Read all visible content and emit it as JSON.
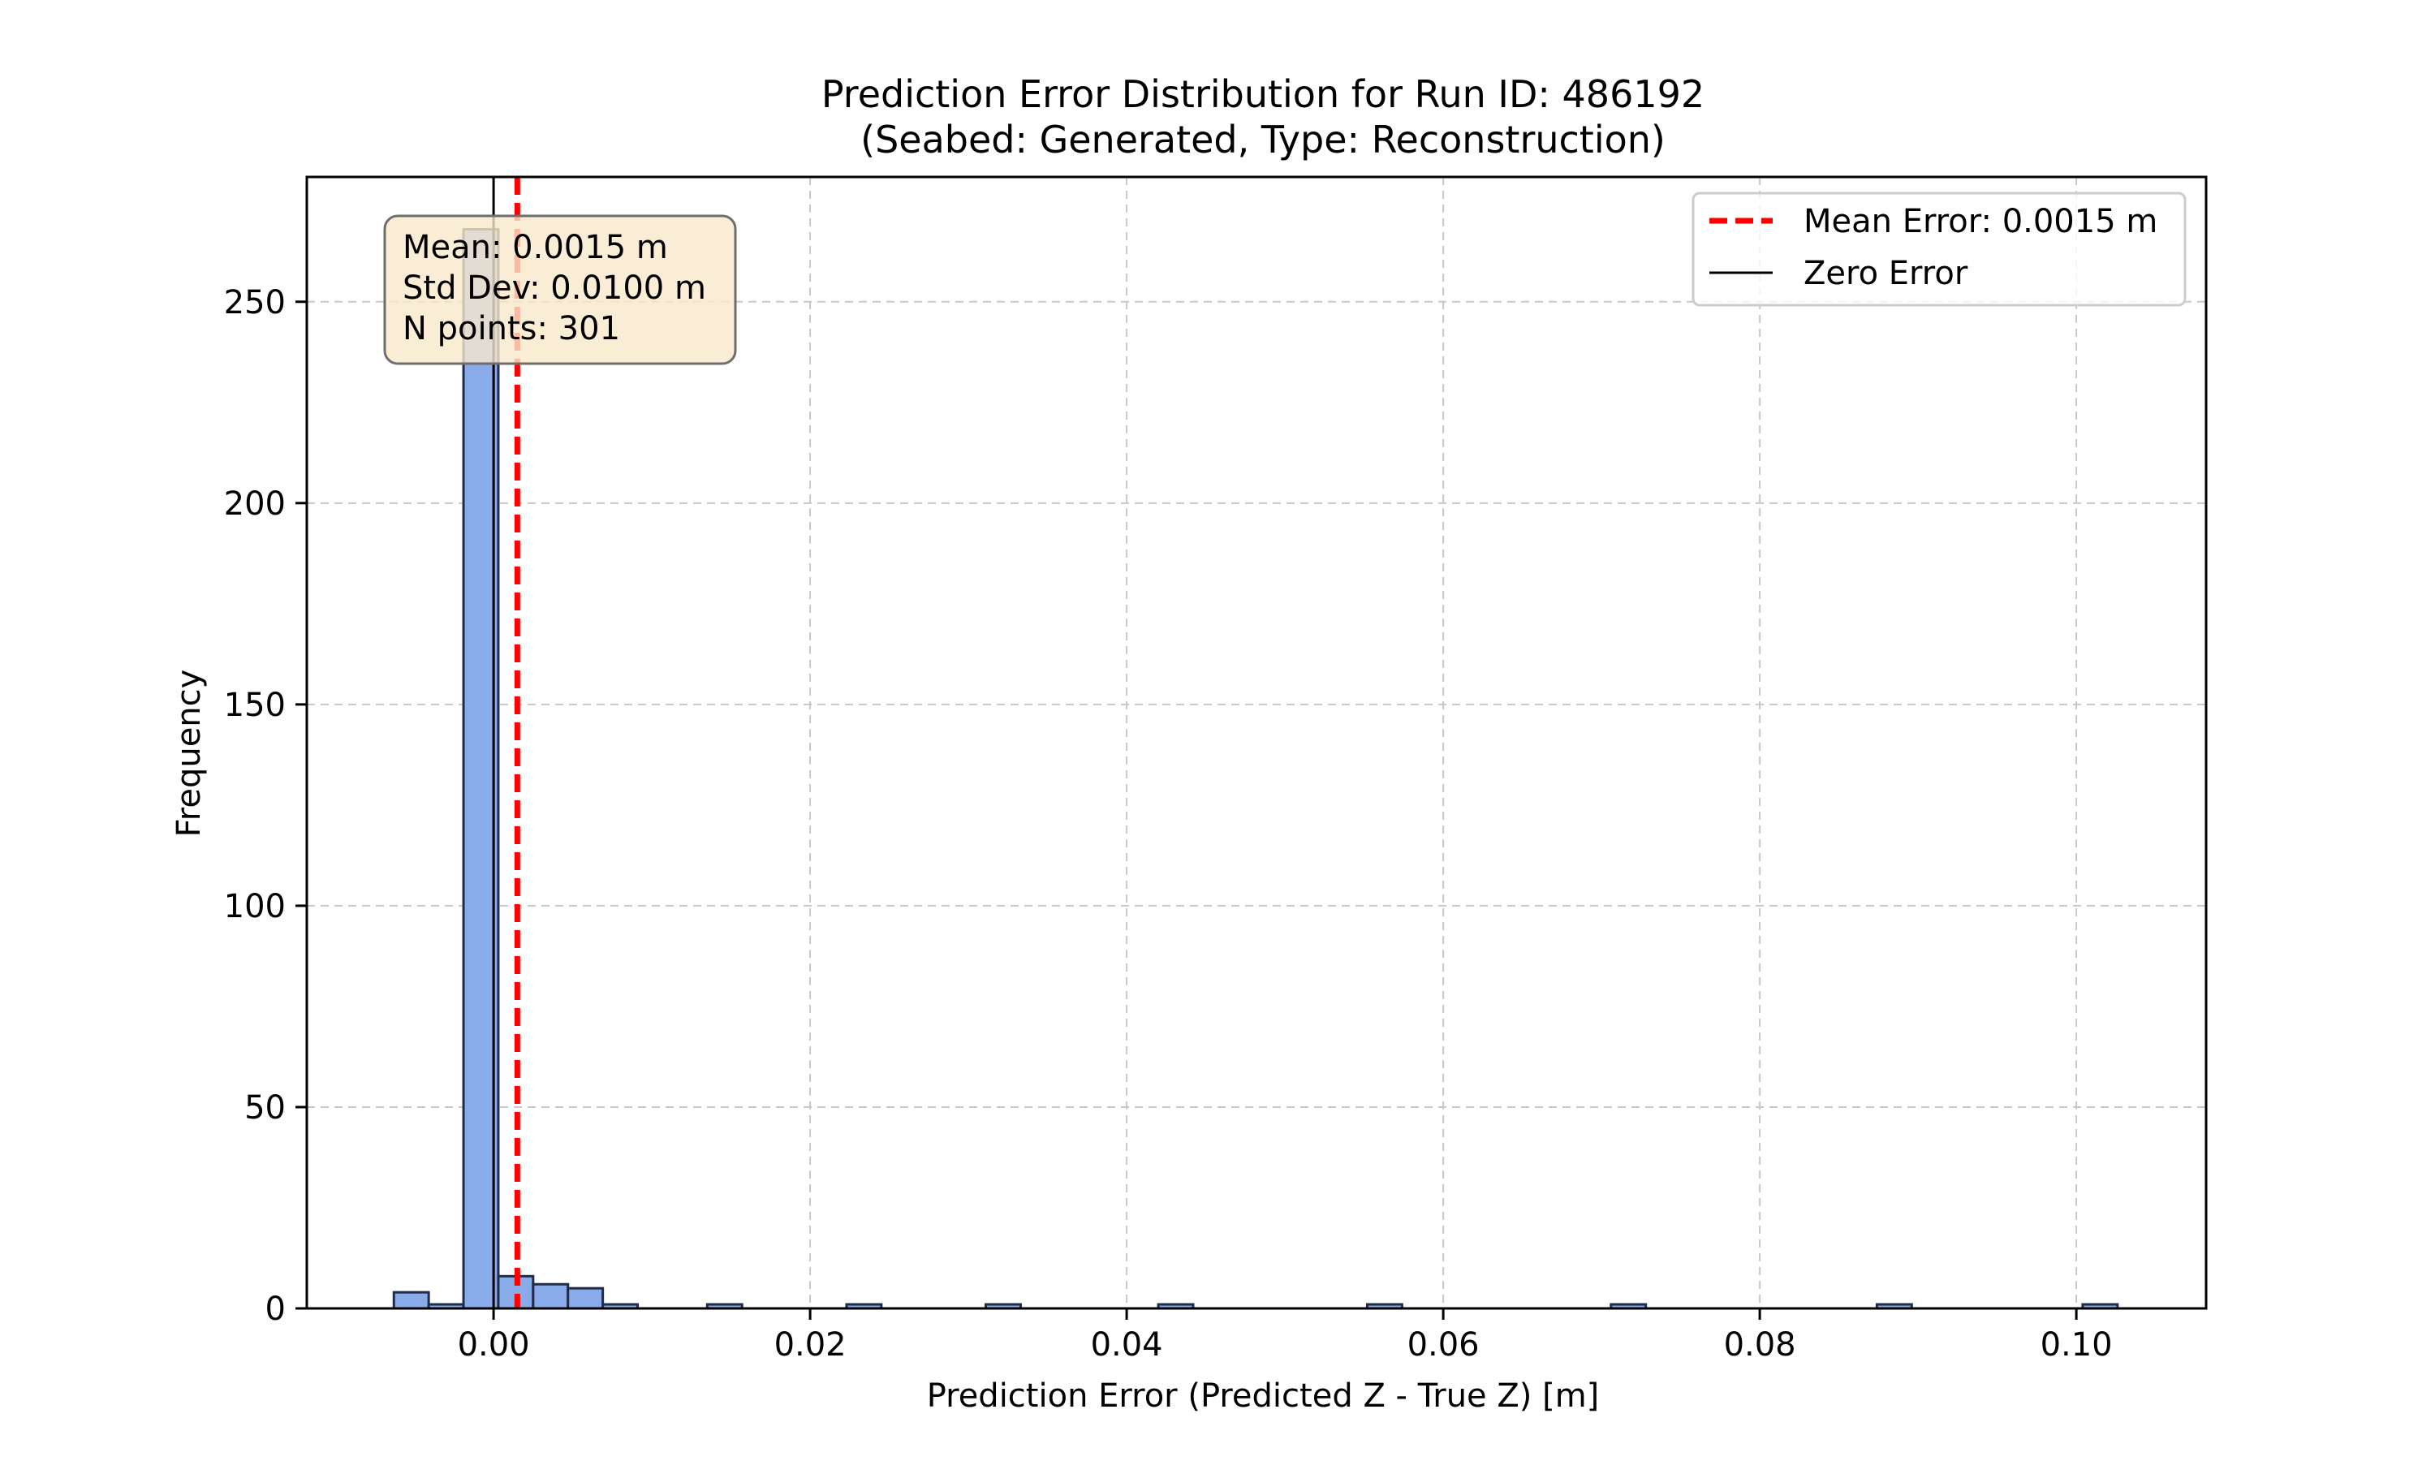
{
  "chart_data": {
    "type": "bar",
    "title": "Prediction Error Distribution for Run ID: 486192",
    "subtitle": "(Seabed: Generated, Type: Reconstruction)",
    "xlabel": "Prediction Error (Predicted Z - True Z) [m]",
    "ylabel": "Frequency",
    "xlim": [
      -0.0118,
      0.1082
    ],
    "ylim": [
      0,
      281
    ],
    "x_ticks": [
      0.0,
      0.02,
      0.04,
      0.06,
      0.08,
      0.1
    ],
    "x_tick_labels": [
      "0.00",
      "0.02",
      "0.04",
      "0.06",
      "0.08",
      "0.10"
    ],
    "y_ticks": [
      0,
      50,
      100,
      150,
      200,
      250
    ],
    "y_tick_labels": [
      "0",
      "50",
      "100",
      "150",
      "200",
      "250"
    ],
    "grid": true,
    "bin_width": 0.0022,
    "bins": [
      {
        "left": -0.0063,
        "count": 4
      },
      {
        "left": -0.0041,
        "count": 1
      },
      {
        "left": -0.0019,
        "count": 268
      },
      {
        "left": 0.0003,
        "count": 8
      },
      {
        "left": 0.0025,
        "count": 6
      },
      {
        "left": 0.0047,
        "count": 5
      },
      {
        "left": 0.0069,
        "count": 1
      },
      {
        "left": 0.0135,
        "count": 1
      },
      {
        "left": 0.0223,
        "count": 1
      },
      {
        "left": 0.0311,
        "count": 1
      },
      {
        "left": 0.042,
        "count": 1
      },
      {
        "left": 0.0552,
        "count": 1
      },
      {
        "left": 0.0706,
        "count": 1
      },
      {
        "left": 0.0874,
        "count": 1
      },
      {
        "left": 0.1004,
        "count": 1
      }
    ],
    "bar_color": "#8aabea",
    "bar_edge_color": "#1f2d4a",
    "mean_error": 0.0015,
    "mean_line_color": "#ff0000",
    "zero_error": 0.0,
    "zero_line_color": "#000000",
    "legend": {
      "placement": "top-right",
      "entries": [
        "Mean Error: 0.0015 m",
        "Zero Error"
      ]
    },
    "stats_box": {
      "placement": "top-left",
      "lines": [
        "Mean: 0.0015 m",
        "Std Dev: 0.0100 m",
        "N points: 301"
      ],
      "background": "#f7e9cc"
    }
  }
}
